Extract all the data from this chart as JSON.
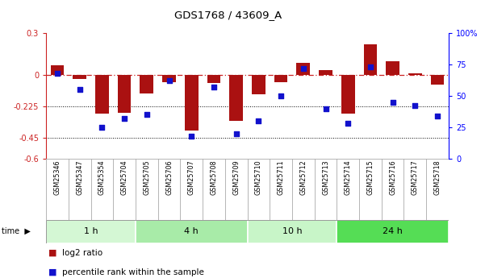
{
  "title": "GDS1768 / 43609_A",
  "categories": [
    "GSM25346",
    "GSM25347",
    "GSM25354",
    "GSM25704",
    "GSM25705",
    "GSM25706",
    "GSM25707",
    "GSM25708",
    "GSM25709",
    "GSM25710",
    "GSM25711",
    "GSM25712",
    "GSM25713",
    "GSM25714",
    "GSM25715",
    "GSM25716",
    "GSM25717",
    "GSM25718"
  ],
  "log2_ratio": [
    0.07,
    -0.03,
    -0.28,
    -0.27,
    -0.13,
    -0.05,
    -0.4,
    -0.06,
    -0.33,
    -0.14,
    -0.05,
    0.09,
    0.035,
    -0.28,
    0.22,
    0.1,
    0.015,
    -0.07
  ],
  "percentile": [
    68,
    55,
    25,
    32,
    35,
    62,
    18,
    57,
    20,
    30,
    50,
    72,
    40,
    28,
    73,
    45,
    42,
    34
  ],
  "groups": [
    {
      "label": "1 h",
      "start": 0,
      "end": 4,
      "color": "#d4f7d4"
    },
    {
      "label": "4 h",
      "start": 4,
      "end": 9,
      "color": "#a8eba8"
    },
    {
      "label": "10 h",
      "start": 9,
      "end": 13,
      "color": "#c8f5c8"
    },
    {
      "label": "24 h",
      "start": 13,
      "end": 18,
      "color": "#55dd55"
    }
  ],
  "ylim_left": [
    -0.6,
    0.3
  ],
  "ylim_right": [
    0,
    100
  ],
  "yticks_left": [
    -0.6,
    -0.45,
    -0.225,
    0.0,
    0.3
  ],
  "ytick_labels_left": [
    "-0.6",
    "-0.45",
    "-0.225",
    "0",
    "0.3"
  ],
  "yticks_right": [
    0,
    25,
    50,
    75,
    100
  ],
  "ytick_labels_right": [
    "0",
    "25",
    "50",
    "75",
    "100%"
  ],
  "hlines": [
    -0.225,
    -0.45
  ],
  "bar_color": "#aa1111",
  "scatter_color": "#1111cc",
  "dashed_line_color": "#cc2222",
  "figsize": [
    6.01,
    3.45
  ],
  "dpi": 100
}
